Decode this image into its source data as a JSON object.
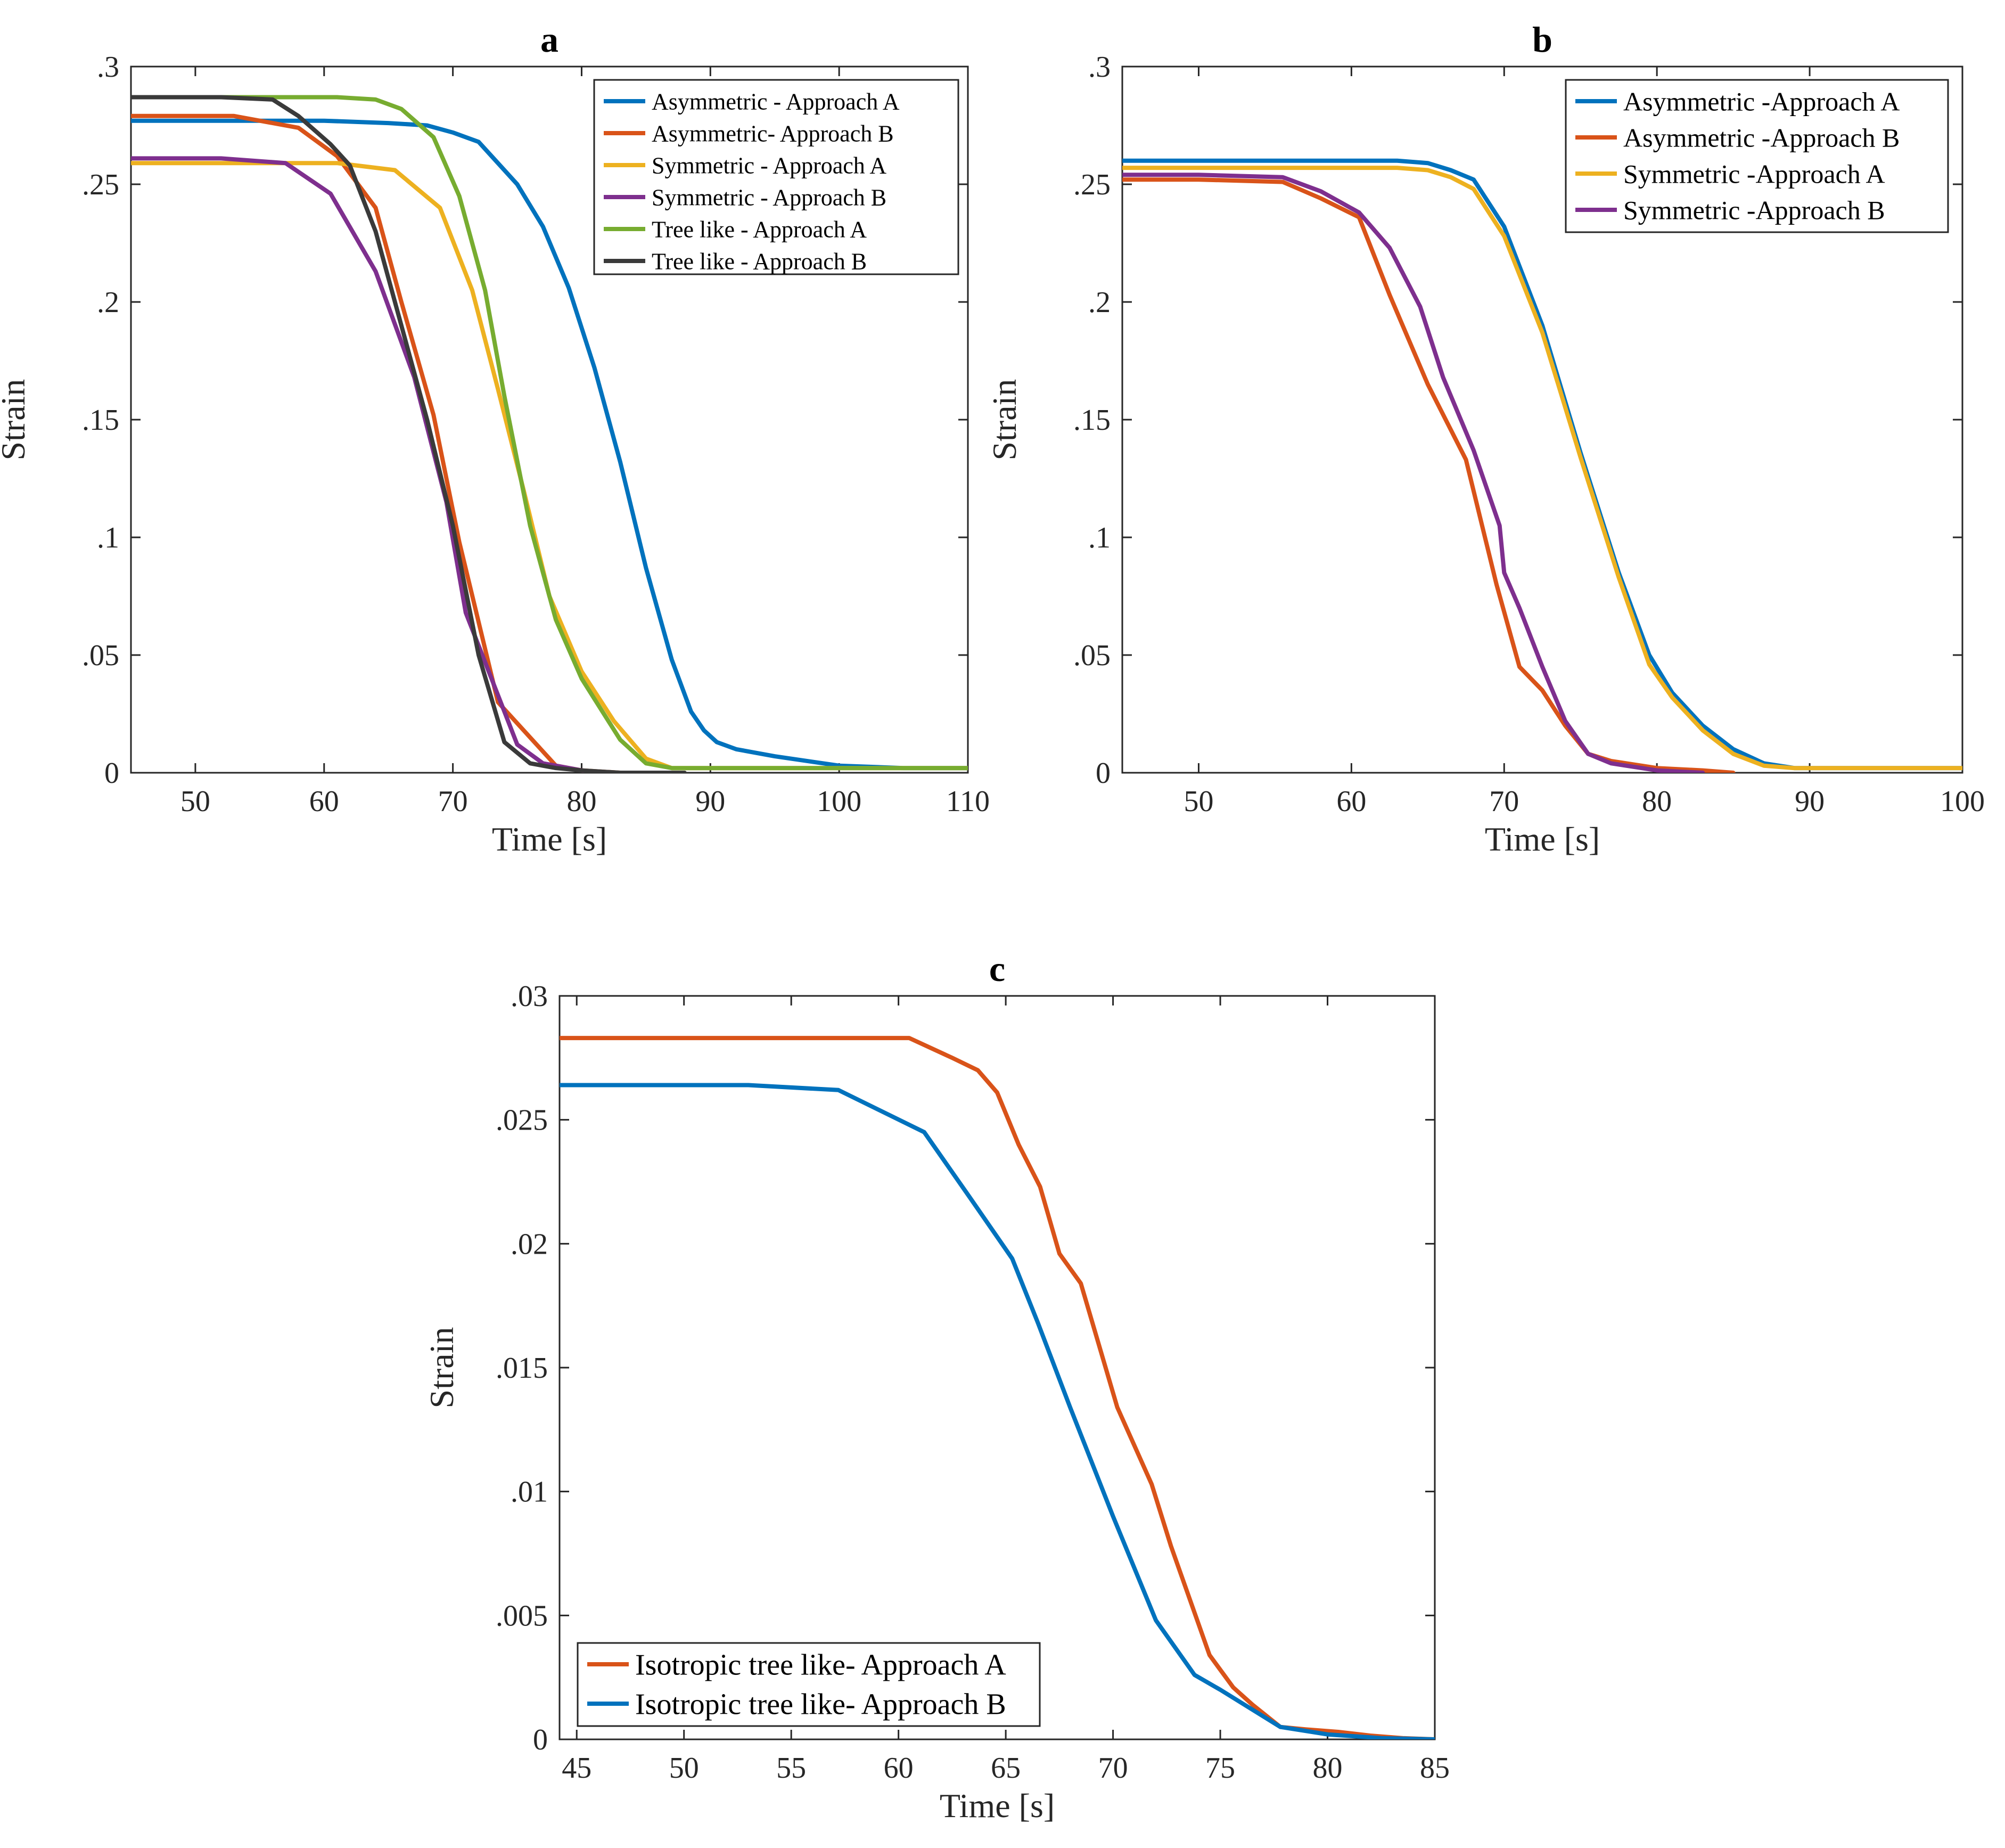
{
  "chart_data": [
    {
      "type": "line",
      "title": "a",
      "xlabel": "Time [s]",
      "ylabel": "Strain",
      "xlim": [
        45,
        110
      ],
      "ylim": [
        0,
        0.3
      ],
      "xticks": [
        50,
        60,
        70,
        80,
        90,
        100,
        110
      ],
      "yticks": [
        0,
        0.05,
        0.1,
        0.15,
        0.2,
        0.25,
        0.3
      ],
      "grid": false,
      "legend_position": "top-right",
      "series": [
        {
          "name": "Asymmetric - Approach A",
          "color": "#0072BD",
          "x": [
            45,
            55,
            60,
            65,
            68,
            70,
            72,
            73,
            75,
            77,
            79,
            81,
            83,
            85,
            87,
            88.5,
            89.5,
            90.5,
            92,
            95,
            100,
            105,
            110
          ],
          "y": [
            0.277,
            0.277,
            0.277,
            0.276,
            0.275,
            0.272,
            0.268,
            0.262,
            0.25,
            0.232,
            0.206,
            0.172,
            0.132,
            0.087,
            0.048,
            0.026,
            0.018,
            0.013,
            0.01,
            0.007,
            0.003,
            0.002,
            0.002
          ]
        },
        {
          "name": "Asymmetric- Approach B",
          "color": "#D95319",
          "x": [
            45,
            53,
            58,
            61,
            64,
            66,
            68.5,
            70.5,
            73.5,
            78,
            80,
            83
          ],
          "y": [
            0.279,
            0.279,
            0.274,
            0.262,
            0.24,
            0.2,
            0.152,
            0.098,
            0.03,
            0.003,
            0.001,
            0
          ],
          "x_end_note": ""
        },
        {
          "name": "Symmetric - Approach A",
          "color": "#EDB120",
          "x": [
            45,
            55,
            61,
            65.5,
            69,
            71.5,
            73.5,
            75.5,
            77.5,
            80,
            82.5,
            85,
            87,
            90,
            110
          ],
          "y": [
            0.259,
            0.259,
            0.259,
            0.256,
            0.24,
            0.205,
            0.163,
            0.12,
            0.075,
            0.043,
            0.022,
            0.006,
            0.002,
            0.002,
            0.002
          ]
        },
        {
          "name": "Symmetric - Approach B",
          "color": "#7E2F8E",
          "x": [
            45,
            52,
            57,
            60.5,
            64,
            67,
            69.5,
            71,
            73,
            75,
            77,
            80,
            82
          ],
          "y": [
            0.261,
            0.261,
            0.259,
            0.246,
            0.213,
            0.168,
            0.115,
            0.068,
            0.04,
            0.012,
            0.004,
            0.001,
            0
          ]
        },
        {
          "name": "Tree like - Approach A",
          "color": "#77AC30",
          "x": [
            45,
            55,
            61,
            64,
            66,
            68.5,
            70.5,
            72.5,
            74,
            76,
            78,
            80,
            83,
            85,
            87,
            90,
            110
          ],
          "y": [
            0.287,
            0.287,
            0.287,
            0.286,
            0.282,
            0.27,
            0.245,
            0.205,
            0.16,
            0.105,
            0.065,
            0.04,
            0.014,
            0.004,
            0.002,
            0.002,
            0.002
          ]
        },
        {
          "name": "Tree like - Approach B",
          "color": "#3a3a3a",
          "x": [
            45,
            52,
            56,
            58,
            60.5,
            62,
            64,
            66,
            68,
            70,
            72,
            74,
            76,
            78,
            80,
            83,
            85,
            88
          ],
          "y": [
            0.287,
            0.287,
            0.286,
            0.279,
            0.267,
            0.258,
            0.23,
            0.19,
            0.15,
            0.105,
            0.05,
            0.013,
            0.004,
            0.002,
            0.001,
            0,
            0,
            0
          ]
        }
      ]
    },
    {
      "type": "line",
      "title": "b",
      "xlabel": "Time [s]",
      "ylabel": "Strain",
      "xlim": [
        45,
        100
      ],
      "ylim": [
        0,
        0.3
      ],
      "xticks": [
        50,
        60,
        70,
        80,
        90,
        100
      ],
      "yticks": [
        0,
        0.05,
        0.1,
        0.15,
        0.2,
        0.25,
        0.3
      ],
      "grid": false,
      "legend_position": "top-right",
      "series": [
        {
          "name": "Asymmetric -Approach A",
          "color": "#0072BD",
          "x": [
            45,
            55,
            60,
            63,
            65,
            66.5,
            68,
            70,
            72.5,
            75,
            77.5,
            79.5,
            81,
            83,
            85,
            87,
            89,
            90,
            100
          ],
          "y": [
            0.26,
            0.26,
            0.26,
            0.26,
            0.259,
            0.256,
            0.252,
            0.232,
            0.19,
            0.136,
            0.085,
            0.05,
            0.034,
            0.02,
            0.01,
            0.004,
            0.002,
            0.002,
            0.002
          ]
        },
        {
          "name": "Asymmetric -Approach B",
          "color": "#D95319",
          "x": [
            45,
            50,
            55.5,
            58,
            60.5,
            62.5,
            65,
            67.5,
            69.5,
            71,
            72.5,
            74,
            75.5,
            77,
            80,
            83,
            85
          ],
          "y": [
            0.252,
            0.252,
            0.251,
            0.244,
            0.236,
            0.203,
            0.165,
            0.133,
            0.08,
            0.045,
            0.035,
            0.02,
            0.008,
            0.005,
            0.002,
            0.001,
            0
          ]
        },
        {
          "name": "Symmetric -Approach A",
          "color": "#EDB120",
          "x": [
            45,
            55,
            60,
            63,
            65,
            66.5,
            68,
            70,
            72.5,
            75,
            77.5,
            79.5,
            81,
            83,
            85,
            87,
            89,
            90,
            100
          ],
          "y": [
            0.257,
            0.257,
            0.257,
            0.257,
            0.256,
            0.253,
            0.248,
            0.228,
            0.187,
            0.134,
            0.083,
            0.046,
            0.032,
            0.018,
            0.008,
            0.003,
            0.002,
            0.002,
            0.002
          ]
        },
        {
          "name": "Symmetric -Approach B",
          "color": "#7E2F8E",
          "x": [
            45,
            50,
            55.5,
            58,
            60.5,
            62.5,
            64.5,
            66,
            68,
            69.7,
            70,
            71,
            72.5,
            74,
            75.5,
            77,
            80,
            83
          ],
          "y": [
            0.254,
            0.254,
            0.253,
            0.247,
            0.238,
            0.223,
            0.198,
            0.168,
            0.137,
            0.105,
            0.085,
            0.07,
            0.045,
            0.022,
            0.008,
            0.004,
            0.001,
            0
          ]
        }
      ]
    },
    {
      "type": "line",
      "title": "c",
      "xlabel": "Time [s]",
      "ylabel": "Strain",
      "xlim": [
        44.2,
        85
      ],
      "ylim": [
        0,
        0.03
      ],
      "xticks": [
        45,
        50,
        55,
        60,
        65,
        70,
        75,
        80,
        85
      ],
      "yticks": [
        0,
        0.005,
        0.01,
        0.015,
        0.02,
        0.025,
        0.03
      ],
      "grid": false,
      "legend_position": "bottom-left",
      "series": [
        {
          "name": "Isotropic tree like- Approach A",
          "color": "#D95319",
          "x": [
            44.2,
            50,
            55,
            57,
            60.5,
            62.5,
            63.7,
            64.6,
            65.6,
            66.6,
            67.5,
            68.5,
            70.2,
            71.8,
            72.7,
            74.5,
            75.6,
            76.5,
            77.8,
            79,
            80.5,
            82,
            83.5,
            85
          ],
          "y": [
            0.0283,
            0.0283,
            0.0283,
            0.0283,
            0.0283,
            0.0275,
            0.027,
            0.0261,
            0.024,
            0.0223,
            0.0196,
            0.0184,
            0.0134,
            0.0103,
            0.0078,
            0.0034,
            0.0021,
            0.0014,
            0.0005,
            0.0004,
            0.0003,
            0.00015,
            5e-05,
            0
          ]
        },
        {
          "name": "Isotropic tree like- Approach B",
          "color": "#0072BD",
          "x": [
            44.2,
            53,
            57.2,
            61.2,
            63.3,
            65.3,
            66.5,
            68,
            70,
            72,
            73.8,
            75,
            77.8,
            80,
            82.5,
            85
          ],
          "y": [
            0.0264,
            0.0264,
            0.0262,
            0.0245,
            0.0219,
            0.0194,
            0.0168,
            0.0134,
            0.009,
            0.0048,
            0.0026,
            0.002,
            0.0005,
            0.0002,
            5e-05,
            0
          ]
        }
      ]
    }
  ]
}
